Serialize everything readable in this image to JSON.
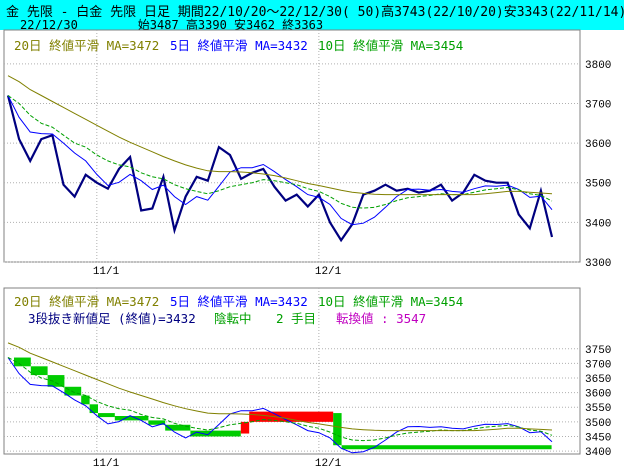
{
  "header": {
    "line1": "金 先限 - 白金 先限 日足 期間22/10/20～22/12/30( 50)高3743(22/10/20)安3343(22/11/14)",
    "date": "22/12/30",
    "ohlc": "始3487 高3390 安3462 終3363"
  },
  "top_legend": {
    "ma20": "20日 終値平滑 MA=3472",
    "ma5": "5日 終値平滑 MA=3432",
    "ma10": "10日 終値平滑 MA=3454"
  },
  "bottom_legend": {
    "ma20": "20日 終値平滑 MA=3472",
    "ma5": "5日 終値平滑 MA=3432",
    "ma10": "10日 終値平滑 MA=3454",
    "kagi_label": "3段抜き新値足 (終値)=3432",
    "status": "陰転中",
    "step": "2 手目",
    "turn": "転換値 : 3547"
  },
  "colors": {
    "title_bg": "#00ffff",
    "close_line": "#000080",
    "ma5": "#0000ff",
    "ma10": "#00a000",
    "ma20": "#808000",
    "up_block": "#ff0000",
    "down_block": "#00cc00",
    "grid": "#b0b0b0"
  },
  "chart_data": [
    {
      "type": "line",
      "title": "",
      "x": [
        "22/10/20",
        "22/10/21",
        "22/10/24",
        "22/10/25",
        "22/10/26",
        "22/10/27",
        "22/10/28",
        "22/10/31",
        "22/11/1",
        "22/11/2",
        "22/11/4",
        "22/11/7",
        "22/11/8",
        "22/11/9",
        "22/11/10",
        "22/11/11",
        "22/11/14",
        "22/11/15",
        "22/11/16",
        "22/11/17",
        "22/11/18",
        "22/11/21",
        "22/11/22",
        "22/11/24",
        "22/11/25",
        "22/11/28",
        "22/11/29",
        "22/11/30",
        "22/12/1",
        "22/12/2",
        "22/12/5",
        "22/12/6",
        "22/12/7",
        "22/12/8",
        "22/12/9",
        "22/12/12",
        "22/12/13",
        "22/12/14",
        "22/12/15",
        "22/12/16",
        "22/12/19",
        "22/12/20",
        "22/12/21",
        "22/12/22",
        "22/12/23",
        "22/12/26",
        "22/12/27",
        "22/12/28",
        "22/12/29",
        "22/12/30"
      ],
      "xticks": [
        "11/1",
        "12/1"
      ],
      "ylim": [
        3300,
        3850
      ],
      "yticks": [
        3300,
        3400,
        3500,
        3600,
        3700,
        3800
      ],
      "series": [
        {
          "name": "終値",
          "values": [
            3720,
            3610,
            3555,
            3610,
            3620,
            3495,
            3465,
            3520,
            3500,
            3485,
            3535,
            3565,
            3430,
            3435,
            3515,
            3380,
            3465,
            3515,
            3505,
            3590,
            3570,
            3510,
            3525,
            3535,
            3490,
            3455,
            3470,
            3440,
            3470,
            3400,
            3355,
            3395,
            3470,
            3480,
            3495,
            3480,
            3485,
            3475,
            3480,
            3495,
            3455,
            3475,
            3520,
            3505,
            3500,
            3500,
            3420,
            3385,
            3480,
            3363
          ]
        },
        {
          "name": "5日 終値平滑",
          "values": [
            3720,
            3665,
            3628,
            3624,
            3623,
            3600,
            3575,
            3555,
            3521,
            3493,
            3501,
            3521,
            3505,
            3483,
            3494,
            3465,
            3445,
            3465,
            3456,
            3491,
            3527,
            3538,
            3538,
            3546,
            3528,
            3508,
            3490,
            3470,
            3463,
            3445,
            3410,
            3394,
            3398,
            3413,
            3438,
            3465,
            3483,
            3484,
            3481,
            3483,
            3478,
            3476,
            3485,
            3492,
            3491,
            3494,
            3483,
            3463,
            3466,
            3432
          ]
        },
        {
          "name": "10日 終値平滑",
          "values": [
            3720,
            3700,
            3670,
            3650,
            3640,
            3620,
            3600,
            3590,
            3570,
            3555,
            3545,
            3540,
            3525,
            3515,
            3510,
            3495,
            3485,
            3478,
            3472,
            3480,
            3490,
            3495,
            3500,
            3508,
            3505,
            3500,
            3495,
            3485,
            3478,
            3465,
            3448,
            3438,
            3436,
            3438,
            3445,
            3455,
            3462,
            3465,
            3468,
            3472,
            3470,
            3470,
            3476,
            3482,
            3485,
            3488,
            3482,
            3472,
            3468,
            3454
          ]
        },
        {
          "name": "20日 終値平滑",
          "values": [
            3770,
            3755,
            3735,
            3720,
            3705,
            3690,
            3675,
            3660,
            3645,
            3630,
            3615,
            3602,
            3590,
            3578,
            3566,
            3555,
            3545,
            3537,
            3530,
            3528,
            3528,
            3527,
            3525,
            3522,
            3518,
            3512,
            3505,
            3498,
            3493,
            3487,
            3481,
            3476,
            3473,
            3471,
            3470,
            3470,
            3470,
            3470,
            3470,
            3470,
            3470,
            3470,
            3470,
            3472,
            3475,
            3478,
            3478,
            3476,
            3474,
            3472
          ]
        }
      ],
      "grid": true
    },
    {
      "type": "bar",
      "title": "",
      "ylim": [
        3390,
        3780
      ],
      "yticks": [
        3400,
        3450,
        3500,
        3550,
        3600,
        3650,
        3700,
        3750
      ],
      "xticks": [
        "11/1",
        "12/1"
      ],
      "blocks": [
        {
          "dir": "down",
          "from": 3720,
          "to": 3690,
          "start": 0,
          "end": 2
        },
        {
          "dir": "down",
          "from": 3690,
          "to": 3660,
          "start": 2,
          "end": 4
        },
        {
          "dir": "down",
          "from": 3660,
          "to": 3620,
          "start": 4,
          "end": 6
        },
        {
          "dir": "down",
          "from": 3620,
          "to": 3590,
          "start": 6,
          "end": 8
        },
        {
          "dir": "down",
          "from": 3590,
          "to": 3560,
          "start": 8,
          "end": 9
        },
        {
          "dir": "down",
          "from": 3560,
          "to": 3530,
          "start": 9,
          "end": 10
        },
        {
          "dir": "down",
          "from": 3530,
          "to": 3520,
          "start": 10,
          "end": 12
        },
        {
          "dir": "down",
          "from": 3520,
          "to": 3505,
          "start": 12,
          "end": 16
        },
        {
          "dir": "down",
          "from": 3505,
          "to": 3490,
          "start": 16,
          "end": 18
        },
        {
          "dir": "down",
          "from": 3490,
          "to": 3470,
          "start": 18,
          "end": 21
        },
        {
          "dir": "down",
          "from": 3470,
          "to": 3450,
          "start": 21,
          "end": 27
        },
        {
          "dir": "up",
          "from": 3460,
          "to": 3500,
          "start": 27,
          "end": 28
        },
        {
          "dir": "up",
          "from": 3500,
          "to": 3535,
          "start": 28,
          "end": 38
        },
        {
          "dir": "down",
          "from": 3530,
          "to": 3420,
          "start": 38,
          "end": 39
        },
        {
          "dir": "down",
          "from": 3420,
          "to": 3410,
          "start": 39,
          "end": 64
        }
      ],
      "series": [
        {
          "name": "5日 終値平滑",
          "ref": "top.5"
        },
        {
          "name": "10日 終値平滑",
          "ref": "top.10"
        },
        {
          "name": "20日 終値平滑",
          "ref": "top.20"
        }
      ],
      "grid": true
    }
  ]
}
